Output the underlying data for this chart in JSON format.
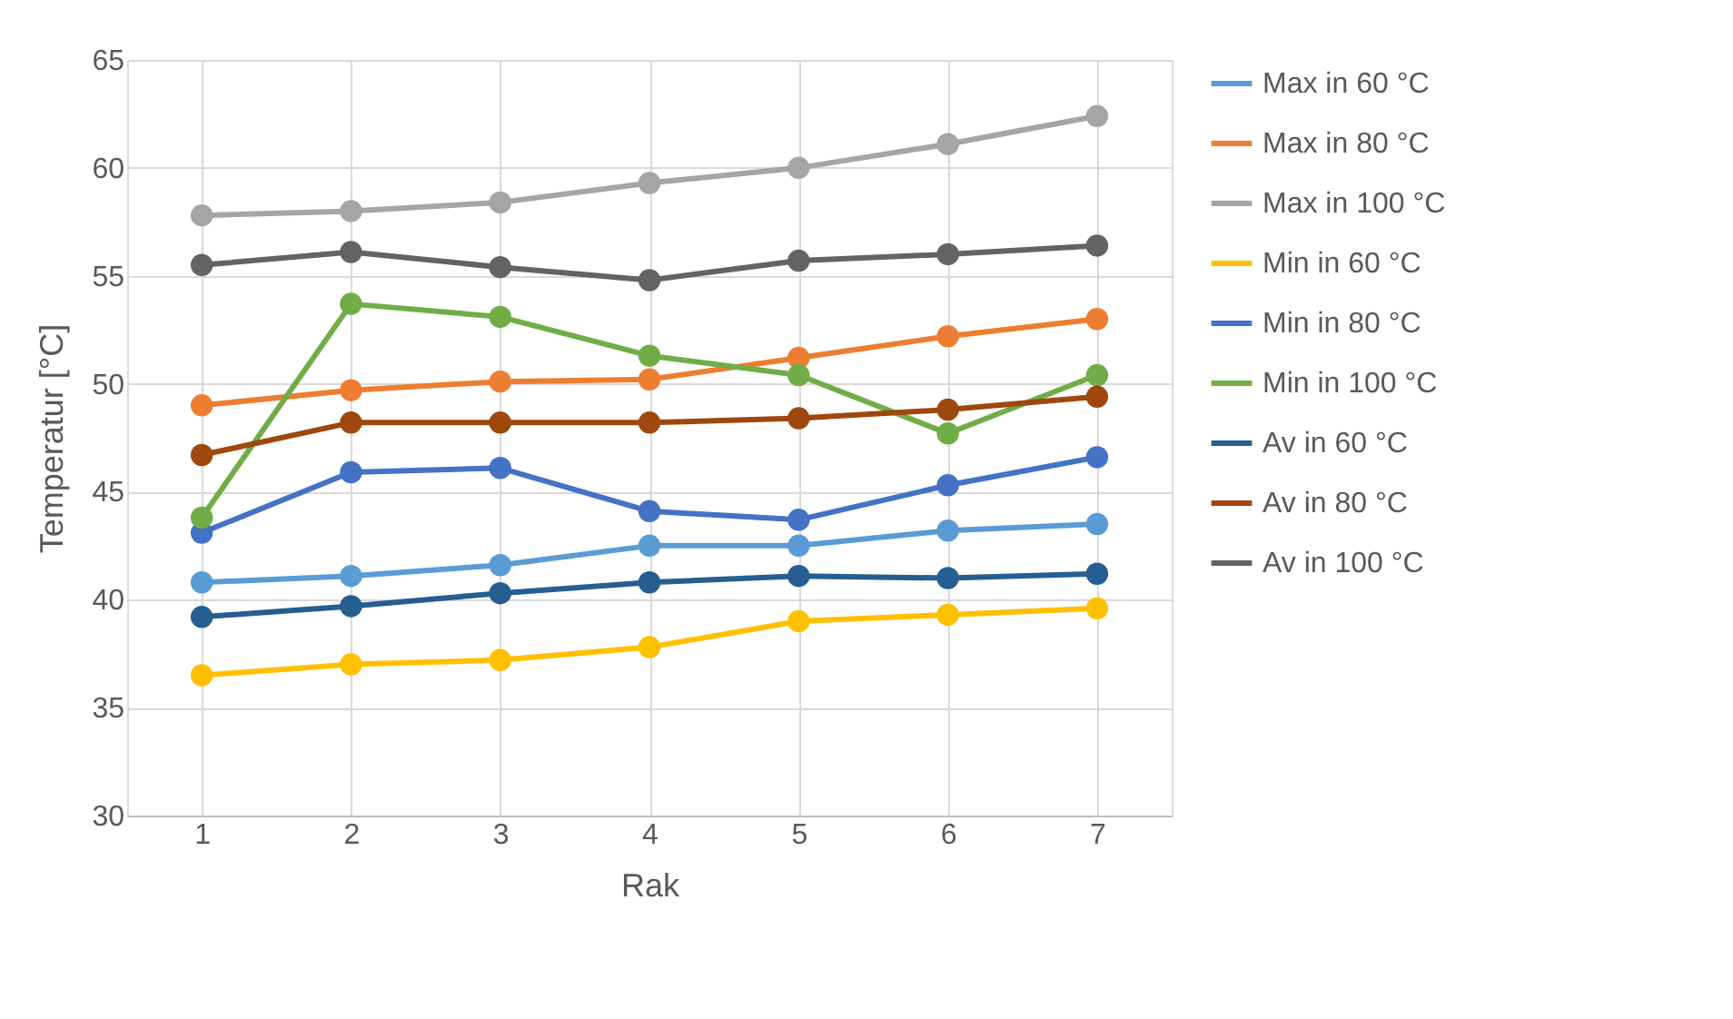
{
  "chart_data": {
    "type": "line",
    "xlabel": "Rak",
    "ylabel": "Temperatur [°C]",
    "categories": [
      "1",
      "2",
      "3",
      "4",
      "5",
      "6",
      "7"
    ],
    "ylim": [
      30,
      65
    ],
    "yticks": [
      30,
      35,
      40,
      45,
      50,
      55,
      60,
      65
    ],
    "grid": true,
    "legend": "right",
    "marker": "circle",
    "line_style": "solid",
    "series": [
      {
        "name": "Max in 60 °C",
        "color": "#5b9bd5",
        "values": [
          40.8,
          41.1,
          41.6,
          42.5,
          42.5,
          43.2,
          43.5
        ]
      },
      {
        "name": "Max in 80 °C",
        "color": "#ed7d31",
        "values": [
          49.0,
          49.7,
          50.1,
          50.2,
          51.2,
          52.2,
          53.0
        ]
      },
      {
        "name": "Max in 100 °C",
        "color": "#a5a5a5",
        "values": [
          57.8,
          58.0,
          58.4,
          59.3,
          60.0,
          61.1,
          62.4
        ]
      },
      {
        "name": "Min in 60 °C",
        "color": "#ffc000",
        "values": [
          36.5,
          37.0,
          37.2,
          37.8,
          39.0,
          39.3,
          39.6
        ]
      },
      {
        "name": "Min in 80 °C",
        "color": "#4472c4",
        "values": [
          43.1,
          45.9,
          46.1,
          44.1,
          43.7,
          45.3,
          46.6
        ]
      },
      {
        "name": "Min in 100 °C",
        "color": "#70ad47",
        "values": [
          43.8,
          53.7,
          53.1,
          51.3,
          50.4,
          47.7,
          50.4
        ]
      },
      {
        "name": "Av in 60 °C",
        "color": "#255e91",
        "values": [
          39.2,
          39.7,
          40.3,
          40.8,
          41.1,
          41.0,
          41.2
        ]
      },
      {
        "name": "Av in 80 °C",
        "color": "#9e480e",
        "values": [
          46.7,
          48.2,
          48.2,
          48.2,
          48.4,
          48.8,
          49.4
        ]
      },
      {
        "name": "Av in 100 °C",
        "color": "#636363",
        "values": [
          55.5,
          56.1,
          55.4,
          54.8,
          55.7,
          56.0,
          56.4
        ]
      }
    ]
  }
}
